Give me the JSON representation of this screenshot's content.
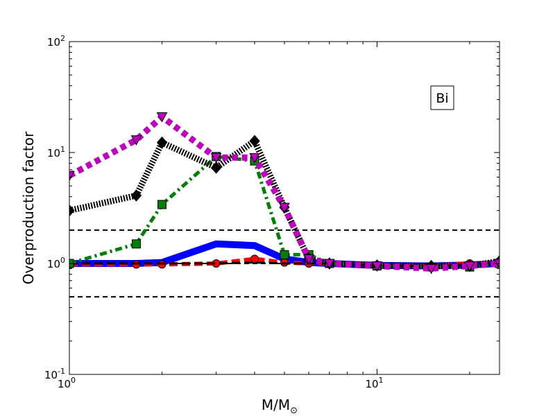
{
  "chart_data": {
    "type": "line",
    "xlabel": "M/M",
    "xlabel_subscript": "⊙",
    "ylabel": "Overproduction factor",
    "x_scale": "log",
    "y_scale": "log",
    "xlim": [
      1,
      25
    ],
    "ylim": [
      0.1,
      100
    ],
    "x_ticks": [
      {
        "value": 1,
        "base": "10",
        "exp": "0"
      },
      {
        "value": 10,
        "base": "10",
        "exp": "1"
      }
    ],
    "y_ticks": [
      {
        "value": 0.1,
        "base": "10",
        "exp": "-1"
      },
      {
        "value": 1,
        "base": "10",
        "exp": "0"
      },
      {
        "value": 10,
        "base": "10",
        "exp": "1"
      },
      {
        "value": 100,
        "base": "10",
        "exp": "2"
      }
    ],
    "annotation": "Bi",
    "annotation_position": "top-right",
    "grid": false,
    "reference_lines": [
      2,
      1,
      0.5
    ],
    "reference_line_color": "#000000",
    "series": [
      {
        "color": "#0000ff",
        "style": "solid",
        "width": 10,
        "marker": "none",
        "x": [
          1,
          1.65,
          2,
          3,
          4,
          5,
          6,
          7,
          10,
          15,
          20,
          25
        ],
        "y": [
          1.0,
          1.0,
          1.02,
          1.5,
          1.45,
          1.1,
          1.02,
          1.0,
          0.96,
          0.95,
          0.97,
          1.0
        ]
      },
      {
        "color": "#ff0000",
        "style": "dashed",
        "width": 6,
        "marker": "circle",
        "x": [
          1,
          1.65,
          2,
          3,
          4,
          5,
          6,
          7,
          10,
          15,
          20,
          25
        ],
        "y": [
          0.98,
          0.98,
          0.98,
          1.0,
          1.1,
          1.02,
          1.0,
          1.0,
          0.97,
          0.95,
          1.0,
          1.02
        ]
      },
      {
        "color": "#000000",
        "style": "dashed",
        "width": 3,
        "marker": "none",
        "x": [
          1,
          1.65,
          2,
          3,
          4,
          5,
          6,
          7,
          10,
          15,
          20,
          25
        ],
        "y": [
          1.0,
          1.0,
          1.0,
          1.0,
          1.02,
          1.0,
          1.0,
          1.0,
          0.96,
          0.95,
          0.97,
          1.0
        ]
      },
      {
        "color": "#007f00",
        "style": "dashdot",
        "width": 5,
        "marker": "square",
        "x": [
          1,
          1.65,
          2,
          3,
          4,
          5,
          6,
          7,
          10,
          15,
          20,
          25
        ],
        "y": [
          1.0,
          1.5,
          3.4,
          9.2,
          8.4,
          1.2,
          1.2,
          1.0,
          0.95,
          0.93,
          0.93,
          1.0
        ]
      },
      {
        "color": "#000000",
        "style": "hatched",
        "width": 9,
        "marker": "diamond",
        "x": [
          1,
          1.65,
          2,
          3,
          4,
          5,
          6,
          7,
          10,
          15,
          20,
          25
        ],
        "y": [
          3.0,
          4.1,
          12.3,
          7.3,
          12.7,
          3.2,
          1.1,
          1.0,
          0.96,
          0.95,
          0.95,
          1.05
        ]
      },
      {
        "color": "#bf00bf",
        "style": "dotted",
        "width": 9,
        "marker": "triangle-down",
        "x": [
          1,
          1.65,
          2,
          3,
          4,
          5,
          6,
          7,
          10,
          15,
          20,
          25
        ],
        "y": [
          6.2,
          13.0,
          21.0,
          9.0,
          9.0,
          3.2,
          1.1,
          1.0,
          0.95,
          0.9,
          0.95,
          1.0
        ]
      }
    ]
  }
}
